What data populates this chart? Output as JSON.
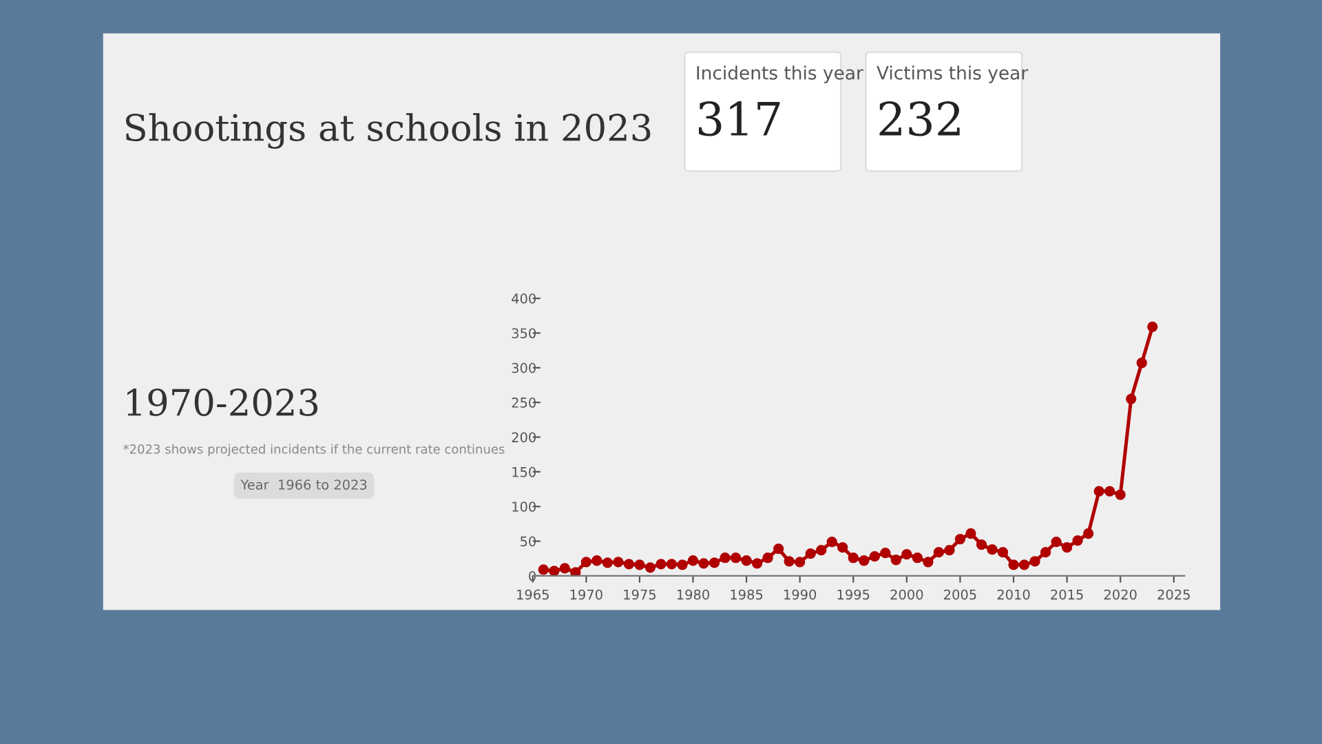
{
  "chart_data": {
    "type": "line",
    "title": "Shootings at schools in 2023",
    "annotations": [
      "Incidents this year",
      "317",
      "Victims this year",
      "232",
      "1970-2023",
      "*2023 shows projected incidents if the current rate continues",
      "Year  1966 to 2023"
    ],
    "x": [
      1966,
      1967,
      1968,
      1969,
      1970,
      1971,
      1972,
      1973,
      1974,
      1975,
      1976,
      1977,
      1978,
      1979,
      1980,
      1981,
      1982,
      1983,
      1984,
      1985,
      1986,
      1987,
      1988,
      1989,
      1990,
      1991,
      1992,
      1993,
      1994,
      1995,
      1996,
      1997,
      1998,
      1999,
      2000,
      2001,
      2002,
      2003,
      2004,
      2005,
      2006,
      2007,
      2008,
      2009,
      2010,
      2011,
      2012,
      2013,
      2014,
      2015,
      2016,
      2017,
      2018,
      2019,
      2020,
      2021,
      2022,
      2023
    ],
    "series": [
      {
        "color": "#b00000",
        "values": [
          9,
          7,
          11,
          5,
          20,
          22,
          19,
          20,
          17,
          16,
          12,
          17,
          17,
          16,
          22,
          18,
          19,
          26,
          26,
          22,
          18,
          26,
          39,
          21,
          20,
          32,
          37,
          49,
          41,
          26,
          22,
          28,
          33,
          23,
          31,
          26,
          20,
          34,
          37,
          53,
          61,
          45,
          38,
          34,
          16,
          16,
          21,
          34,
          49,
          41,
          51,
          61,
          122,
          122,
          117,
          255,
          307,
          359
        ]
      }
    ],
    "marker": "circle",
    "line_style": "solid",
    "xlim": [
      1965,
      2026
    ],
    "xticks": [
      1965,
      1970,
      1975,
      1980,
      1985,
      1990,
      1995,
      2000,
      2005,
      2010,
      2015,
      2020,
      2025
    ],
    "ylim": [
      0,
      400
    ],
    "yticks": [
      0,
      50,
      100,
      150,
      200,
      250,
      300,
      350,
      400
    ],
    "grid": false
  }
}
